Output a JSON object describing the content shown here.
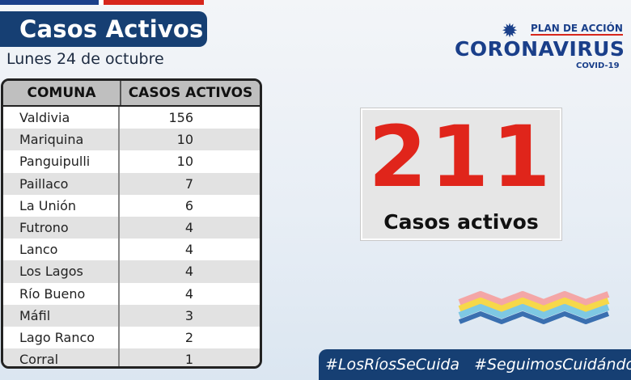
{
  "header": {
    "title": "Casos Activos",
    "date": "Lunes 24 de octubre"
  },
  "logo": {
    "plan": "PLAN DE ACCIÓN",
    "main": "CORONAVIRUS",
    "sub": "COVID-19"
  },
  "table": {
    "col1": "COMUNA",
    "col2": "CASOS ACTIVOS",
    "rows": [
      {
        "comuna": "Valdivia",
        "casos": "156"
      },
      {
        "comuna": "Mariquina",
        "casos": "10"
      },
      {
        "comuna": "Panguipulli",
        "casos": "10"
      },
      {
        "comuna": "Paillaco",
        "casos": "7"
      },
      {
        "comuna": "La Unión",
        "casos": "6"
      },
      {
        "comuna": "Futrono",
        "casos": "4"
      },
      {
        "comuna": "Lanco",
        "casos": "4"
      },
      {
        "comuna": "Los Lagos",
        "casos": "4"
      },
      {
        "comuna": "Río Bueno",
        "casos": "4"
      },
      {
        "comuna": "Máfil",
        "casos": "3"
      },
      {
        "comuna": "Lago Ranco",
        "casos": "2"
      },
      {
        "comuna": "Corral",
        "casos": "1"
      }
    ]
  },
  "counter": {
    "value": "211",
    "label": "Casos activos"
  },
  "hashtags": [
    "#LosRíosSeCuida",
    "#SeguimosCuidándonos"
  ],
  "colors": {
    "navy": "#163f73",
    "red": "#e0251b",
    "header_gray": "#bfbfbf"
  }
}
